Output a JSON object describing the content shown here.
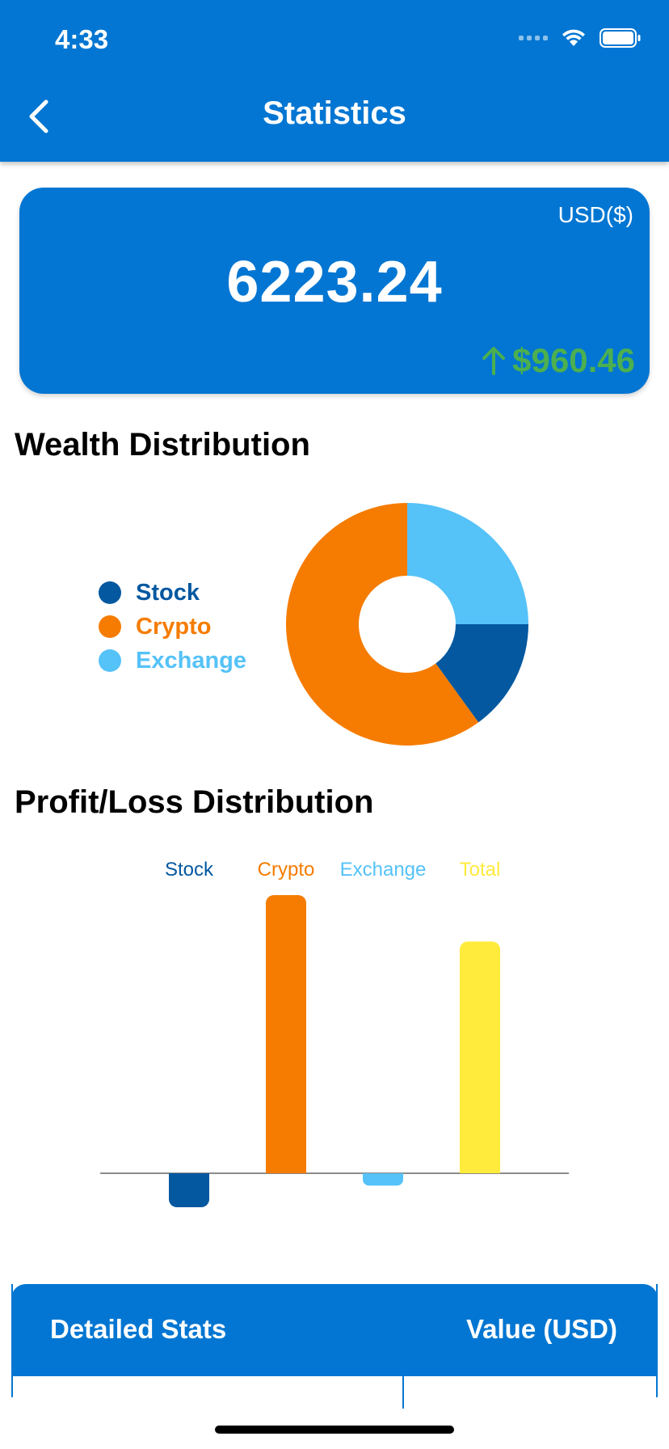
{
  "status_bar": {
    "time": "4:33"
  },
  "header": {
    "title": "Statistics"
  },
  "balance": {
    "currency": "USD($)",
    "value": "6223.24",
    "change": "$960.46",
    "change_color": "#4caf50"
  },
  "wealth": {
    "title": "Wealth Distribution",
    "legend": [
      {
        "label": "Stock",
        "color": "#0358a0"
      },
      {
        "label": "Crypto",
        "color": "#f57c00"
      },
      {
        "label": "Exchange",
        "color": "#55c2f8"
      }
    ]
  },
  "profit": {
    "title": "Profit/Loss Distribution"
  },
  "chart_data": [
    {
      "type": "pie",
      "categories": [
        "Stock",
        "Crypto",
        "Exchange"
      ],
      "values": [
        15,
        60,
        25
      ],
      "colors": [
        "#0358a0",
        "#f57c00",
        "#55c2f8"
      ],
      "donut": true,
      "legend": "left"
    },
    {
      "type": "bar",
      "categories": [
        "Stock",
        "Crypto",
        "Exchange",
        "Total"
      ],
      "values": [
        -110,
        900,
        -40,
        750
      ],
      "colors": [
        "#0358a0",
        "#f57c00",
        "#55c2f8",
        "#ffeb3b"
      ],
      "grid": false,
      "legend": "top"
    }
  ],
  "table": {
    "col1": "Detailed Stats",
    "col2": "Value (USD)"
  }
}
